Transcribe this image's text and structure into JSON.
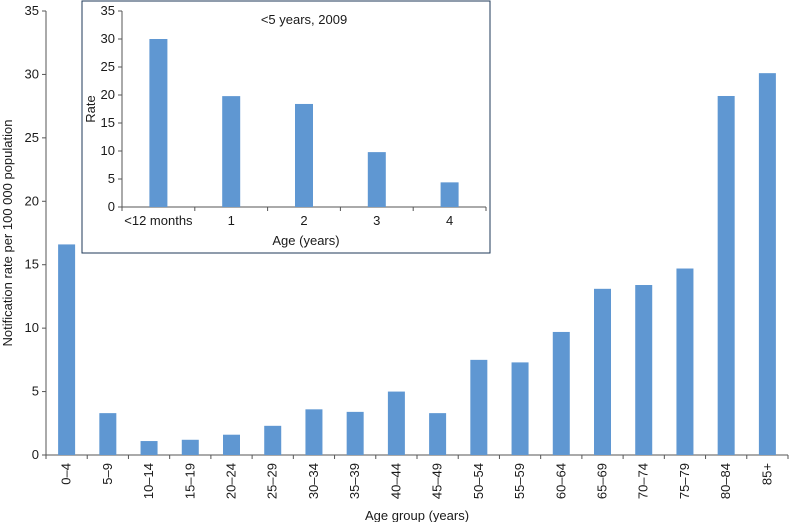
{
  "chart_data": [
    {
      "type": "bar",
      "xlabel": "Age group (years)",
      "ylabel": "Notification rate per 100 000 population",
      "ylim": [
        0,
        35
      ],
      "yticks": [
        0,
        5,
        10,
        15,
        20,
        25,
        30,
        35
      ],
      "categories": [
        "0–4",
        "5–9",
        "10–14",
        "15–19",
        "20–24",
        "25–29",
        "30–34",
        "35–39",
        "40–44",
        "45–49",
        "50–54",
        "55–59",
        "60–64",
        "65–69",
        "70–74",
        "75–79",
        "80–84",
        "85+"
      ],
      "values": [
        16.6,
        3.3,
        1.1,
        1.2,
        1.6,
        2.3,
        3.6,
        3.4,
        5.0,
        3.3,
        7.5,
        7.3,
        9.7,
        13.1,
        13.4,
        14.7,
        28.3,
        30.1
      ],
      "color": "#5f97d2",
      "grid": false
    },
    {
      "type": "bar",
      "title": "<5 years, 2009",
      "xlabel": "Age (years)",
      "ylabel": "Rate",
      "ylim": [
        0,
        35
      ],
      "yticks": [
        0,
        5,
        10,
        15,
        20,
        25,
        30,
        35
      ],
      "categories": [
        "<12 months",
        "1",
        "2",
        "3",
        "4"
      ],
      "values": [
        30.0,
        19.8,
        18.4,
        9.8,
        4.4
      ],
      "color": "#5f97d2",
      "grid": false
    }
  ]
}
